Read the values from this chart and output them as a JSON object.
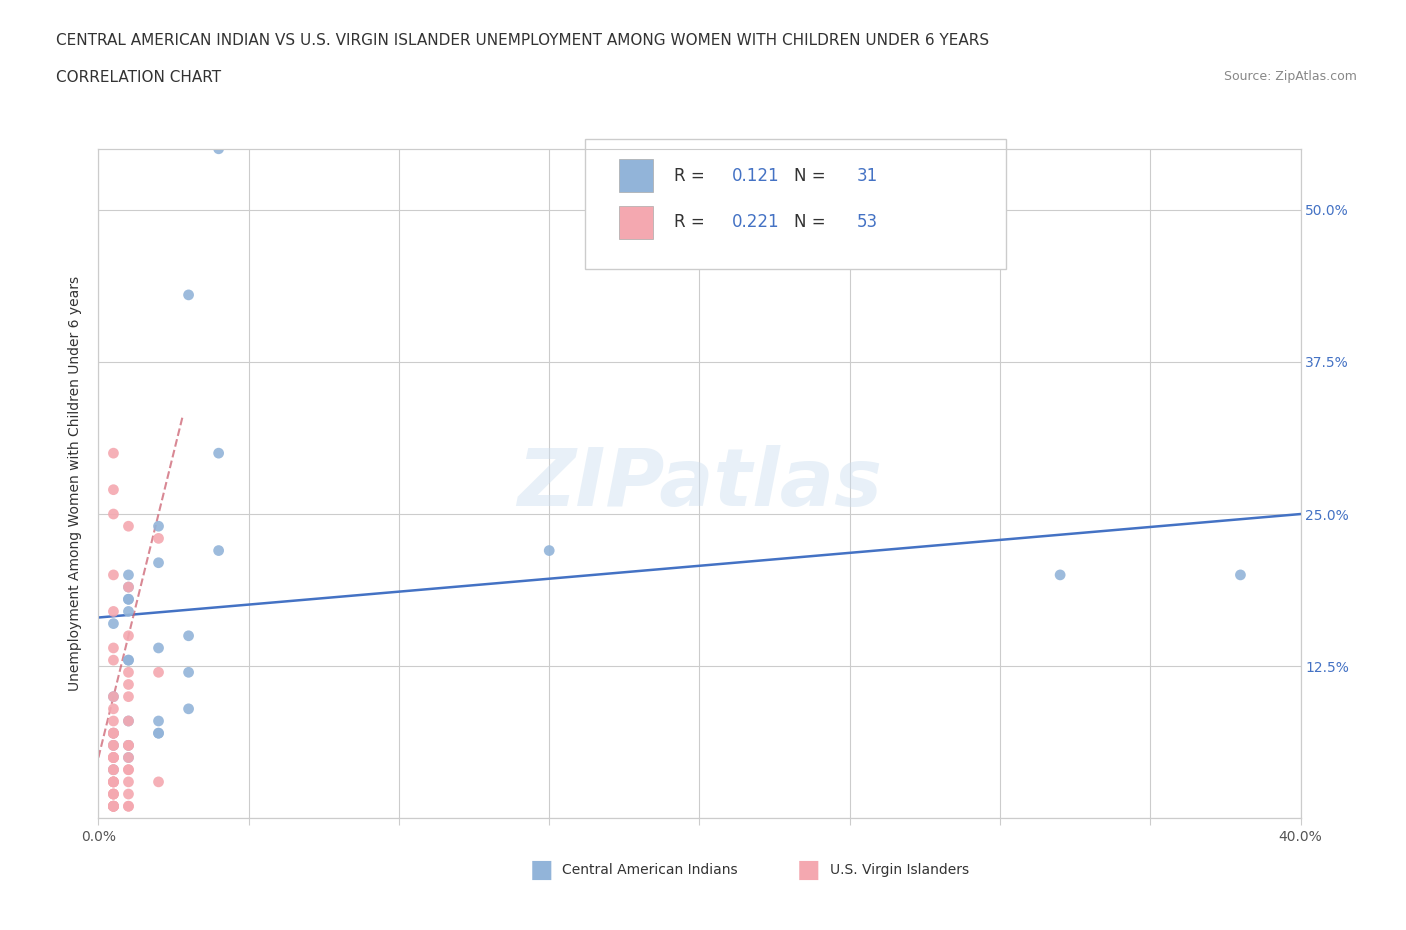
{
  "title_line1": "CENTRAL AMERICAN INDIAN VS U.S. VIRGIN ISLANDER UNEMPLOYMENT AMONG WOMEN WITH CHILDREN UNDER 6 YEARS",
  "title_line2": "CORRELATION CHART",
  "source": "Source: ZipAtlas.com",
  "ylabel": "Unemployment Among Women with Children Under 6 years",
  "xlim": [
    0.0,
    0.4
  ],
  "ylim": [
    0.0,
    0.55
  ],
  "ytick_positions": [
    0.0,
    0.125,
    0.25,
    0.375,
    0.5
  ],
  "yticklabels_right": [
    "",
    "12.5%",
    "25.0%",
    "37.5%",
    "50.0%"
  ],
  "blue_R": 0.121,
  "blue_N": 31,
  "pink_R": 0.221,
  "pink_N": 53,
  "blue_color": "#92b4d9",
  "pink_color": "#f4a8b0",
  "trendline_color": "#4472c4",
  "watermark": "ZIPatlas",
  "legend_label_blue": "Central American Indians",
  "legend_label_pink": "U.S. Virgin Islanders",
  "blue_scatter_x": [
    0.02,
    0.04,
    0.01,
    0.02,
    0.03,
    0.04,
    0.01,
    0.02,
    0.01,
    0.005,
    0.01,
    0.02,
    0.03,
    0.01,
    0.005,
    0.01,
    0.005,
    0.01,
    0.02,
    0.03,
    0.005,
    0.01,
    0.02,
    0.01,
    0.005,
    0.01,
    0.15,
    0.04,
    0.03,
    0.32,
    0.38
  ],
  "blue_scatter_y": [
    0.08,
    0.22,
    0.18,
    0.24,
    0.15,
    0.3,
    0.13,
    0.21,
    0.19,
    0.16,
    0.17,
    0.14,
    0.12,
    0.18,
    0.1,
    0.08,
    0.06,
    0.05,
    0.07,
    0.09,
    0.04,
    0.06,
    0.07,
    0.13,
    0.07,
    0.2,
    0.22,
    0.55,
    0.43,
    0.2,
    0.2
  ],
  "pink_scatter_x": [
    0.005,
    0.005,
    0.005,
    0.01,
    0.005,
    0.01,
    0.005,
    0.01,
    0.005,
    0.005,
    0.01,
    0.02,
    0.01,
    0.005,
    0.01,
    0.005,
    0.005,
    0.01,
    0.005,
    0.005,
    0.005,
    0.01,
    0.005,
    0.005,
    0.01,
    0.005,
    0.005,
    0.01,
    0.005,
    0.005,
    0.005,
    0.01,
    0.005,
    0.01,
    0.02,
    0.01,
    0.005,
    0.005,
    0.005,
    0.005,
    0.005,
    0.005,
    0.01,
    0.005,
    0.02,
    0.005,
    0.005,
    0.005,
    0.01,
    0.005,
    0.01,
    0.005,
    0.005
  ],
  "pink_scatter_y": [
    0.3,
    0.27,
    0.25,
    0.24,
    0.2,
    0.19,
    0.17,
    0.15,
    0.14,
    0.13,
    0.12,
    0.12,
    0.11,
    0.1,
    0.1,
    0.09,
    0.08,
    0.08,
    0.07,
    0.07,
    0.07,
    0.06,
    0.06,
    0.06,
    0.06,
    0.05,
    0.05,
    0.05,
    0.05,
    0.05,
    0.04,
    0.04,
    0.04,
    0.04,
    0.03,
    0.03,
    0.03,
    0.03,
    0.03,
    0.03,
    0.02,
    0.02,
    0.02,
    0.02,
    0.23,
    0.01,
    0.01,
    0.01,
    0.01,
    0.01,
    0.01,
    0.01,
    0.01
  ],
  "blue_trend_x": [
    0.0,
    0.4
  ],
  "blue_trend_y": [
    0.165,
    0.25
  ],
  "pink_trend_x": [
    0.0,
    0.028
  ],
  "pink_trend_y": [
    0.05,
    0.33
  ]
}
